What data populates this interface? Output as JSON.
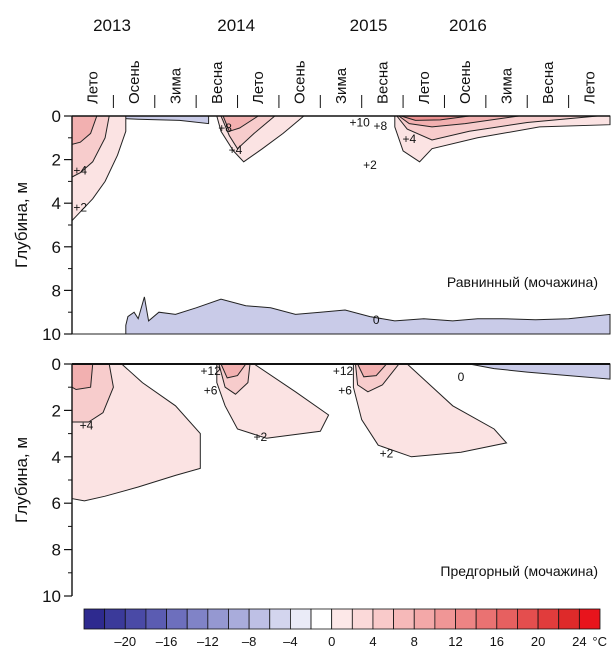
{
  "chart_data": [
    {
      "type": "heatmap",
      "panel": "top",
      "title": "Равнинный (мочажина)",
      "ylabel": "Глубина, м",
      "yticks": [
        0,
        2,
        4,
        6,
        8,
        10
      ],
      "ylim": [
        0,
        10
      ],
      "years": [
        {
          "label": "2013",
          "x": 0.0
        },
        {
          "label": "2014",
          "x": 3.0
        },
        {
          "label": "2015",
          "x": 6.2
        },
        {
          "label": "2016",
          "x": 8.6
        }
      ],
      "seasons": [
        "Лето",
        "Осень",
        "Зима",
        "Весна",
        "Лето",
        "Осень",
        "Зима",
        "Весна",
        "Лето",
        "Осень",
        "Зима",
        "Весна",
        "Лето"
      ],
      "contour_labels": [
        {
          "text": "+4",
          "x": 0.2,
          "y": 2.5
        },
        {
          "text": "+2",
          "x": 0.2,
          "y": 4.2
        },
        {
          "text": "+8",
          "x": 3.7,
          "y": 0.55
        },
        {
          "text": "+4",
          "x": 3.95,
          "y": 1.55
        },
        {
          "text": "+10",
          "x": 6.95,
          "y": 0.3
        },
        {
          "text": "+8",
          "x": 7.45,
          "y": 0.45
        },
        {
          "text": "+4",
          "x": 8.15,
          "y": 1.05
        },
        {
          "text": "+2",
          "x": 7.2,
          "y": 2.25
        },
        {
          "text": "0",
          "x": 7.35,
          "y": 9.35
        }
      ]
    },
    {
      "type": "heatmap",
      "panel": "bottom",
      "title": "Предгорный (мочажина)",
      "ylabel": "Глубина, м",
      "yticks": [
        0,
        2,
        4,
        6,
        8,
        10
      ],
      "ylim": [
        0,
        10
      ],
      "contour_labels": [
        {
          "text": "+4",
          "x": 0.35,
          "y": 2.65
        },
        {
          "text": "+12",
          "x": 3.35,
          "y": 0.3
        },
        {
          "text": "+6",
          "x": 3.35,
          "y": 1.15
        },
        {
          "text": "+2",
          "x": 4.55,
          "y": 3.15
        },
        {
          "text": "+12",
          "x": 6.55,
          "y": 0.3
        },
        {
          "text": "+6",
          "x": 6.6,
          "y": 1.15
        },
        {
          "text": "+2",
          "x": 7.6,
          "y": 3.85
        },
        {
          "text": "0",
          "x": 9.4,
          "y": 0.55
        }
      ]
    }
  ],
  "colorbar": {
    "ticks": [
      "–20",
      "–16",
      "–12",
      "–8",
      "–4",
      "0",
      "4",
      "8",
      "12",
      "16",
      "20",
      "24"
    ],
    "unit": "°С",
    "colors": [
      "#2e2a8f",
      "#3b3a9a",
      "#4a4aa6",
      "#5b5cb2",
      "#6d6fbd",
      "#8083c7",
      "#9598d1",
      "#a9acdb",
      "#bec0e5",
      "#d3d5ee",
      "#eaebf7",
      "#ffffff",
      "#fde8e8",
      "#fbd9d9",
      "#f9caca",
      "#f6b9b9",
      "#f3a8a8",
      "#f09696",
      "#ed8484",
      "#ea7272",
      "#e76060",
      "#e44e4e",
      "#e13c3c",
      "#de2a2a",
      "#e8141c"
    ]
  },
  "colors": {
    "cold": "#c9cbe8",
    "warm1": "#fbe3e3",
    "warm2": "#f7cccc",
    "warm3": "#f2b0b0",
    "warm4": "#ec9090",
    "warm5": "#e26a6a"
  }
}
